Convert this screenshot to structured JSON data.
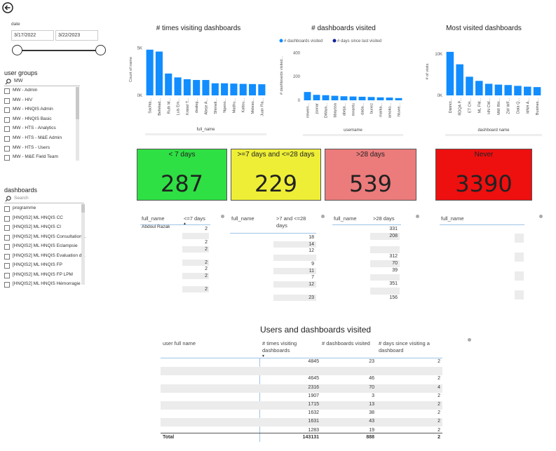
{
  "nav": {
    "back_icon": "back-arrow-icon"
  },
  "date_filter": {
    "label": "date",
    "start": "3/17/2022",
    "end": "3/22/2023"
  },
  "user_groups": {
    "title": "user groups",
    "search_value": "MW",
    "items": [
      "MW - Admin",
      "MW - HIV",
      "MW - HNQIS Admin",
      "MW - HNQIS Basic",
      "MW - HTS - Analytics",
      "MW - HTS - M&E Admin",
      "MW - HTS - Users",
      "MW - M&E Field Team"
    ]
  },
  "dashboards": {
    "title": "dashboards",
    "search_placeholder": "Search",
    "items": [
      "programme",
      "[HNQIS2] ML HNQIS CC",
      "[HNQIS2] ML HNQIS CI",
      "[HNQIS2] ML HNQIS Consultation...",
      "[HNQIS2] ML HNQIS Eclampsie",
      "[HNQIS2] ML HNQIS Evaluation d...",
      "[HNQIS2] ML HNQIS FP",
      "[HNQIS2] ML HNQIS FP LPM",
      "[HNQIS2] ML HNQIS Hémorragie"
    ]
  },
  "chart_data": [
    {
      "type": "bar",
      "title": "# times visiting dashboards",
      "xlabel": "full_name",
      "ylabel": "Count of name",
      "yticks": [
        "5K",
        "0K"
      ],
      "categories": [
        "Sachta...",
        "Befekad...",
        "Ruth M...",
        "Luis Em...",
        "Kristel T...",
        "dealeg...",
        "Abeje A...",
        "Shimeli...",
        "Ngeno...",
        "Madhu...",
        "Kattou...",
        "Meleso...",
        "Juan Fla..."
      ],
      "values": [
        4845,
        4645,
        2316,
        1907,
        1715,
        1632,
        1631,
        1283,
        1283,
        1250,
        1220,
        1200,
        1180
      ],
      "color": "#118DFF"
    },
    {
      "type": "bar",
      "title": "# dashboards visited",
      "xlabel": "username",
      "ylabel": "# dashboards visited...",
      "yticks": [
        "400",
        "200",
        "0"
      ],
      "legend": [
        "# dashboards visited",
        "# days since last visited"
      ],
      "legend_colors": [
        "#118DFF",
        "#12239E"
      ],
      "categories": [
        "rmwen...",
        "jsonar",
        "DWam...",
        "bbayssa",
        "abeja...",
        "mnantu",
        "dada...",
        "bunez",
        "marka...",
        "amoko...",
        "hluwe..."
      ],
      "values": [
        70,
        46,
        43,
        38,
        34,
        32,
        30,
        28,
        25,
        23,
        19
      ],
      "color": "#118DFF"
    },
    {
      "type": "bar",
      "title": "Most visited dashboards",
      "xlabel": "dashboard name",
      "ylabel": "# of visits",
      "yticks": [
        "10K",
        "0K"
      ],
      "categories": [
        "District...",
        "RDQA P...",
        "ET CH...",
        "ML FM...",
        "HN CW...",
        "MW RH...",
        "ZW WF...",
        "Data Q...",
        "MNH A...",
        "Busines..."
      ],
      "values": [
        10500,
        7500,
        4500,
        3500,
        2800,
        2600,
        2500,
        2300,
        2100,
        2000
      ],
      "color": "#118DFF"
    }
  ],
  "cards": [
    {
      "label": "< 7 days",
      "value": "287",
      "color": "#2EE043"
    },
    {
      "label": ">=7 days and <=28 days",
      "value": "229",
      "color": "#EEEE37"
    },
    {
      "label": ">28 days",
      "value": "539",
      "color": "#EC7B7B"
    },
    {
      "label": "Never",
      "value": "3390",
      "color": "#EE0F0F"
    }
  ],
  "table1": {
    "col1": "full_name",
    "col2": "<=7 days",
    "first_name": "Abdoul Razak",
    "values": [
      "2",
      "",
      "2",
      "2",
      "",
      "2",
      "2",
      "2",
      "",
      "2"
    ]
  },
  "table2": {
    "col1": "full_name",
    "col2": ">7 and <=28 days",
    "values": [
      "18",
      "14",
      "12",
      "",
      "9",
      "11",
      "7",
      "12",
      "",
      "23"
    ]
  },
  "table3": {
    "col1": "full_name",
    "col2": ">28 days",
    "values": [
      "331",
      "208",
      "",
      "",
      "312",
      "70",
      "39",
      "",
      "351",
      "",
      "156"
    ]
  },
  "table4": {
    "col1": "full_name"
  },
  "users_table": {
    "title": "Users and dashboards visited",
    "columns": [
      "user full name",
      "# times visiting dashboards",
      "# dashboards visited",
      "# days since visiting a dashboard"
    ],
    "rows": [
      [
        "4845",
        "23",
        "2"
      ],
      [
        "",
        "",
        ""
      ],
      [
        "4645",
        "46",
        "2"
      ],
      [
        "2316",
        "70",
        "4"
      ],
      [
        "1907",
        "3",
        "2"
      ],
      [
        "1715",
        "13",
        "2"
      ],
      [
        "1632",
        "38",
        "2"
      ],
      [
        "1631",
        "43",
        "2"
      ],
      [
        "1283",
        "19",
        "2"
      ]
    ],
    "total": [
      "Total",
      "143131",
      "888",
      "2"
    ]
  }
}
